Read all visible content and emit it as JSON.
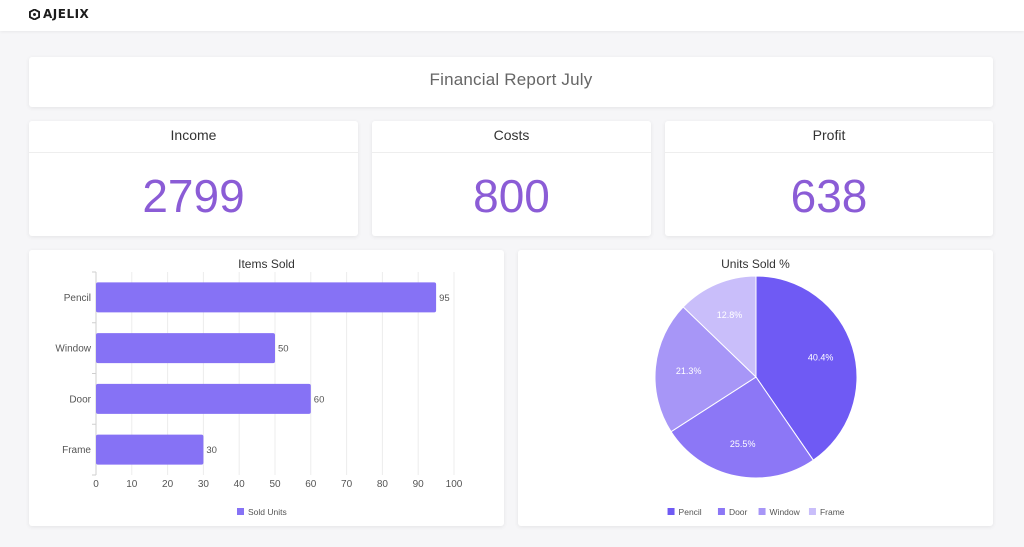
{
  "header": {
    "logo_text": "AJELIX"
  },
  "report": {
    "title": "Financial Report July"
  },
  "kpis": [
    {
      "label": "Income",
      "value": "2799"
    },
    {
      "label": "Costs",
      "value": "800"
    },
    {
      "label": "Profit",
      "value": "638"
    }
  ],
  "colors": {
    "accent": "#8b5cd6",
    "bar": "#8672f5",
    "pie": [
      "#6f5af4",
      "#8c77f6",
      "#a796f7",
      "#c9befa"
    ]
  },
  "chart_data": [
    {
      "type": "bar",
      "orientation": "horizontal",
      "title": "Items Sold",
      "categories": [
        "Pencil",
        "Window",
        "Door",
        "Frame"
      ],
      "series": [
        {
          "name": "Sold Units",
          "values": [
            95,
            50,
            60,
            30
          ]
        }
      ],
      "xlim": [
        0,
        100
      ],
      "xticks": [
        0,
        10,
        20,
        30,
        40,
        50,
        60,
        70,
        80,
        90,
        100
      ],
      "grid": true,
      "data_labels": true,
      "legend": "bottom"
    },
    {
      "type": "pie",
      "title": "Units Sold %",
      "labels": [
        "Pencil",
        "Door",
        "Window",
        "Frame"
      ],
      "values": [
        40.4,
        25.5,
        21.3,
        12.8
      ],
      "data_labels": [
        "40.4%",
        "25.5%",
        "21.3%",
        "12.8%"
      ],
      "legend": "bottom"
    }
  ]
}
